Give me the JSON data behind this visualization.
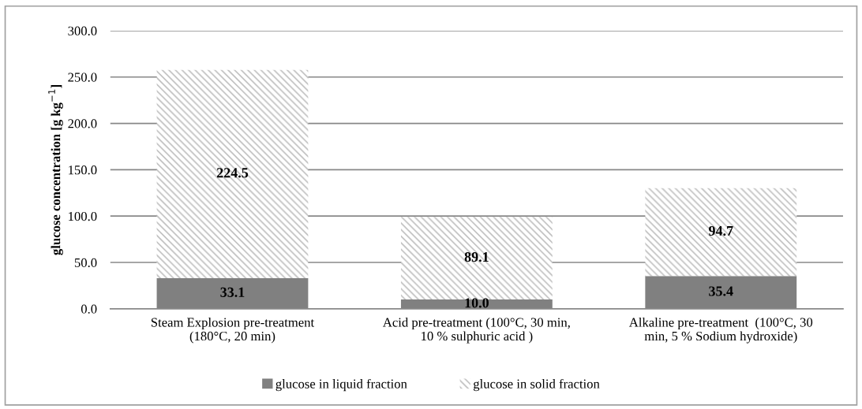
{
  "chart_data": {
    "type": "bar",
    "stacked": true,
    "ylabel": "glucose concentration [g kg$^{−1}$]",
    "categories": [
      "Steam Explosion pre-treatment\n(180°C, 20 min)",
      "Acid pre-treatment (100°C, 30 min,\n10 % sulphuric acid )",
      "Alkaline pre-treatment  (100°C, 30\nmin, 5 % Sodium hydroxide)"
    ],
    "series": [
      {
        "name": "glucose in liquid fraction",
        "color": "#808080",
        "values": [
          33.1,
          10.0,
          35.4
        ],
        "value_labels": [
          "33.1",
          "10.0",
          "35.4"
        ]
      },
      {
        "name": "glucose in solid fraction",
        "color": "#bfbfbf",
        "values": [
          224.5,
          89.1,
          94.7
        ],
        "value_labels": [
          "224.5",
          "89.1",
          "94.7"
        ]
      }
    ],
    "ylim": [
      0,
      300
    ],
    "yticks": [
      {
        "value": 0,
        "label": "0.0"
      },
      {
        "value": 50,
        "label": "50.0"
      },
      {
        "value": 100,
        "label": "100.0"
      },
      {
        "value": 150,
        "label": "150.0"
      },
      {
        "value": 200,
        "label": "200.0"
      },
      {
        "value": 250,
        "label": "250.0"
      },
      {
        "value": 300,
        "label": "300.0"
      }
    ],
    "grid": "y",
    "legend": "bottom"
  }
}
